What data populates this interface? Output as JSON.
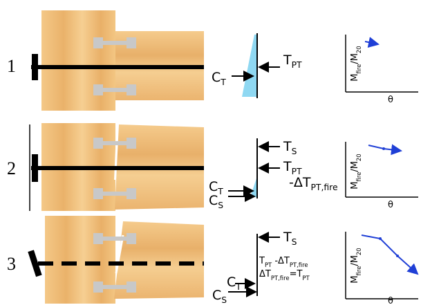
{
  "rows": [
    {
      "number": "1",
      "forces": [
        [
          {
            "text": "C",
            "sub": "T"
          }
        ],
        [
          {
            "text": "T",
            "sub": "PT"
          }
        ]
      ],
      "plot": {
        "y_label": [
          {
            "text": "M",
            "sub": "fire"
          },
          {
            "text": "/M",
            "sub": "20"
          }
        ],
        "x_label": "θ"
      }
    },
    {
      "number": "2",
      "forces": [
        [
          {
            "text": "T",
            "sub": "S"
          }
        ],
        [
          {
            "text": "T",
            "sub": "PT"
          }
        ],
        [
          {
            "text": "-ΔT",
            "sub": "PT,fire"
          }
        ],
        [
          {
            "text": "C",
            "sub": "T"
          }
        ],
        [
          {
            "text": "C",
            "sub": "S"
          }
        ]
      ],
      "plot": {
        "y_label": [
          {
            "text": "M",
            "sub": "fire"
          },
          {
            "text": "/M",
            "sub": "20"
          }
        ],
        "x_label": "θ"
      }
    },
    {
      "number": "3",
      "forces": [
        [
          {
            "text": "T",
            "sub": "S"
          }
        ],
        [
          {
            "text": "T",
            "sub": "PT"
          },
          {
            "text": "  -ΔT",
            "sub": "PT,fire"
          }
        ],
        [
          {
            "text": "ΔT",
            "sub": "PT,fire"
          },
          {
            "text": "=T",
            "sub": "PT"
          }
        ],
        [
          {
            "text": "C",
            "sub": "T"
          }
        ],
        [
          {
            "text": "C",
            "sub": "S"
          }
        ]
      ],
      "plot": {
        "y_label": [
          {
            "text": "M",
            "sub": "fire"
          },
          {
            "text": "/M",
            "sub": "20"
          }
        ],
        "x_label": "θ"
      }
    }
  ]
}
